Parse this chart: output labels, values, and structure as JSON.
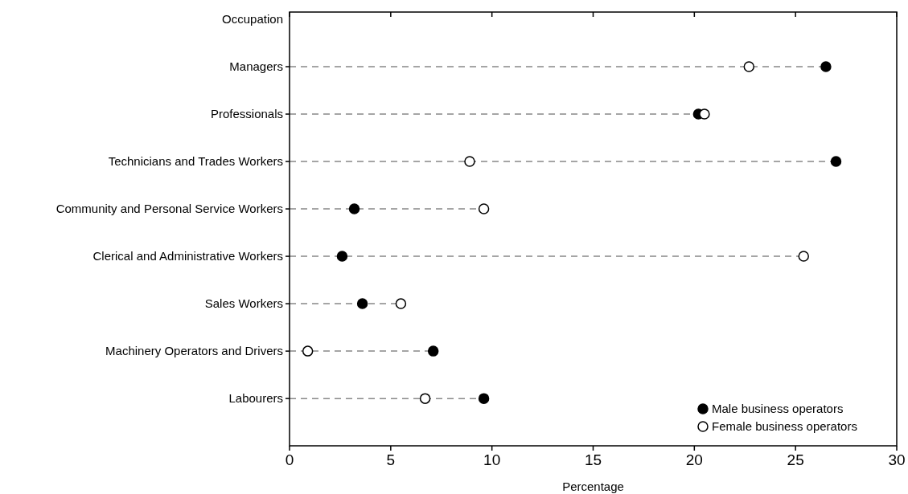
{
  "chart_data": {
    "type": "lollipop",
    "orientation": "horizontal",
    "ylabel": "Occupation",
    "xlabel": "Percentage",
    "categories": [
      "Managers",
      "Professionals",
      "Technicians and Trades Workers",
      "Community and Personal Service Workers",
      "Clerical and Administrative Workers",
      "Sales Workers",
      "Machinery Operators and Drivers",
      "Labourers"
    ],
    "series": [
      {
        "name": "Male business operators",
        "color": "#000000",
        "values": [
          26.5,
          20.2,
          27.0,
          3.2,
          2.6,
          3.6,
          7.1,
          9.6
        ]
      },
      {
        "name": "Female business operators",
        "color": "#ffffff",
        "values": [
          22.7,
          20.5,
          8.9,
          9.6,
          25.4,
          5.5,
          0.9,
          6.7
        ]
      }
    ],
    "xlim": [
      0,
      30
    ],
    "xticks": [
      0,
      5,
      10,
      15,
      20,
      25,
      30
    ],
    "marker": "circle",
    "line_style": "dashed",
    "legend": "bottom right"
  }
}
